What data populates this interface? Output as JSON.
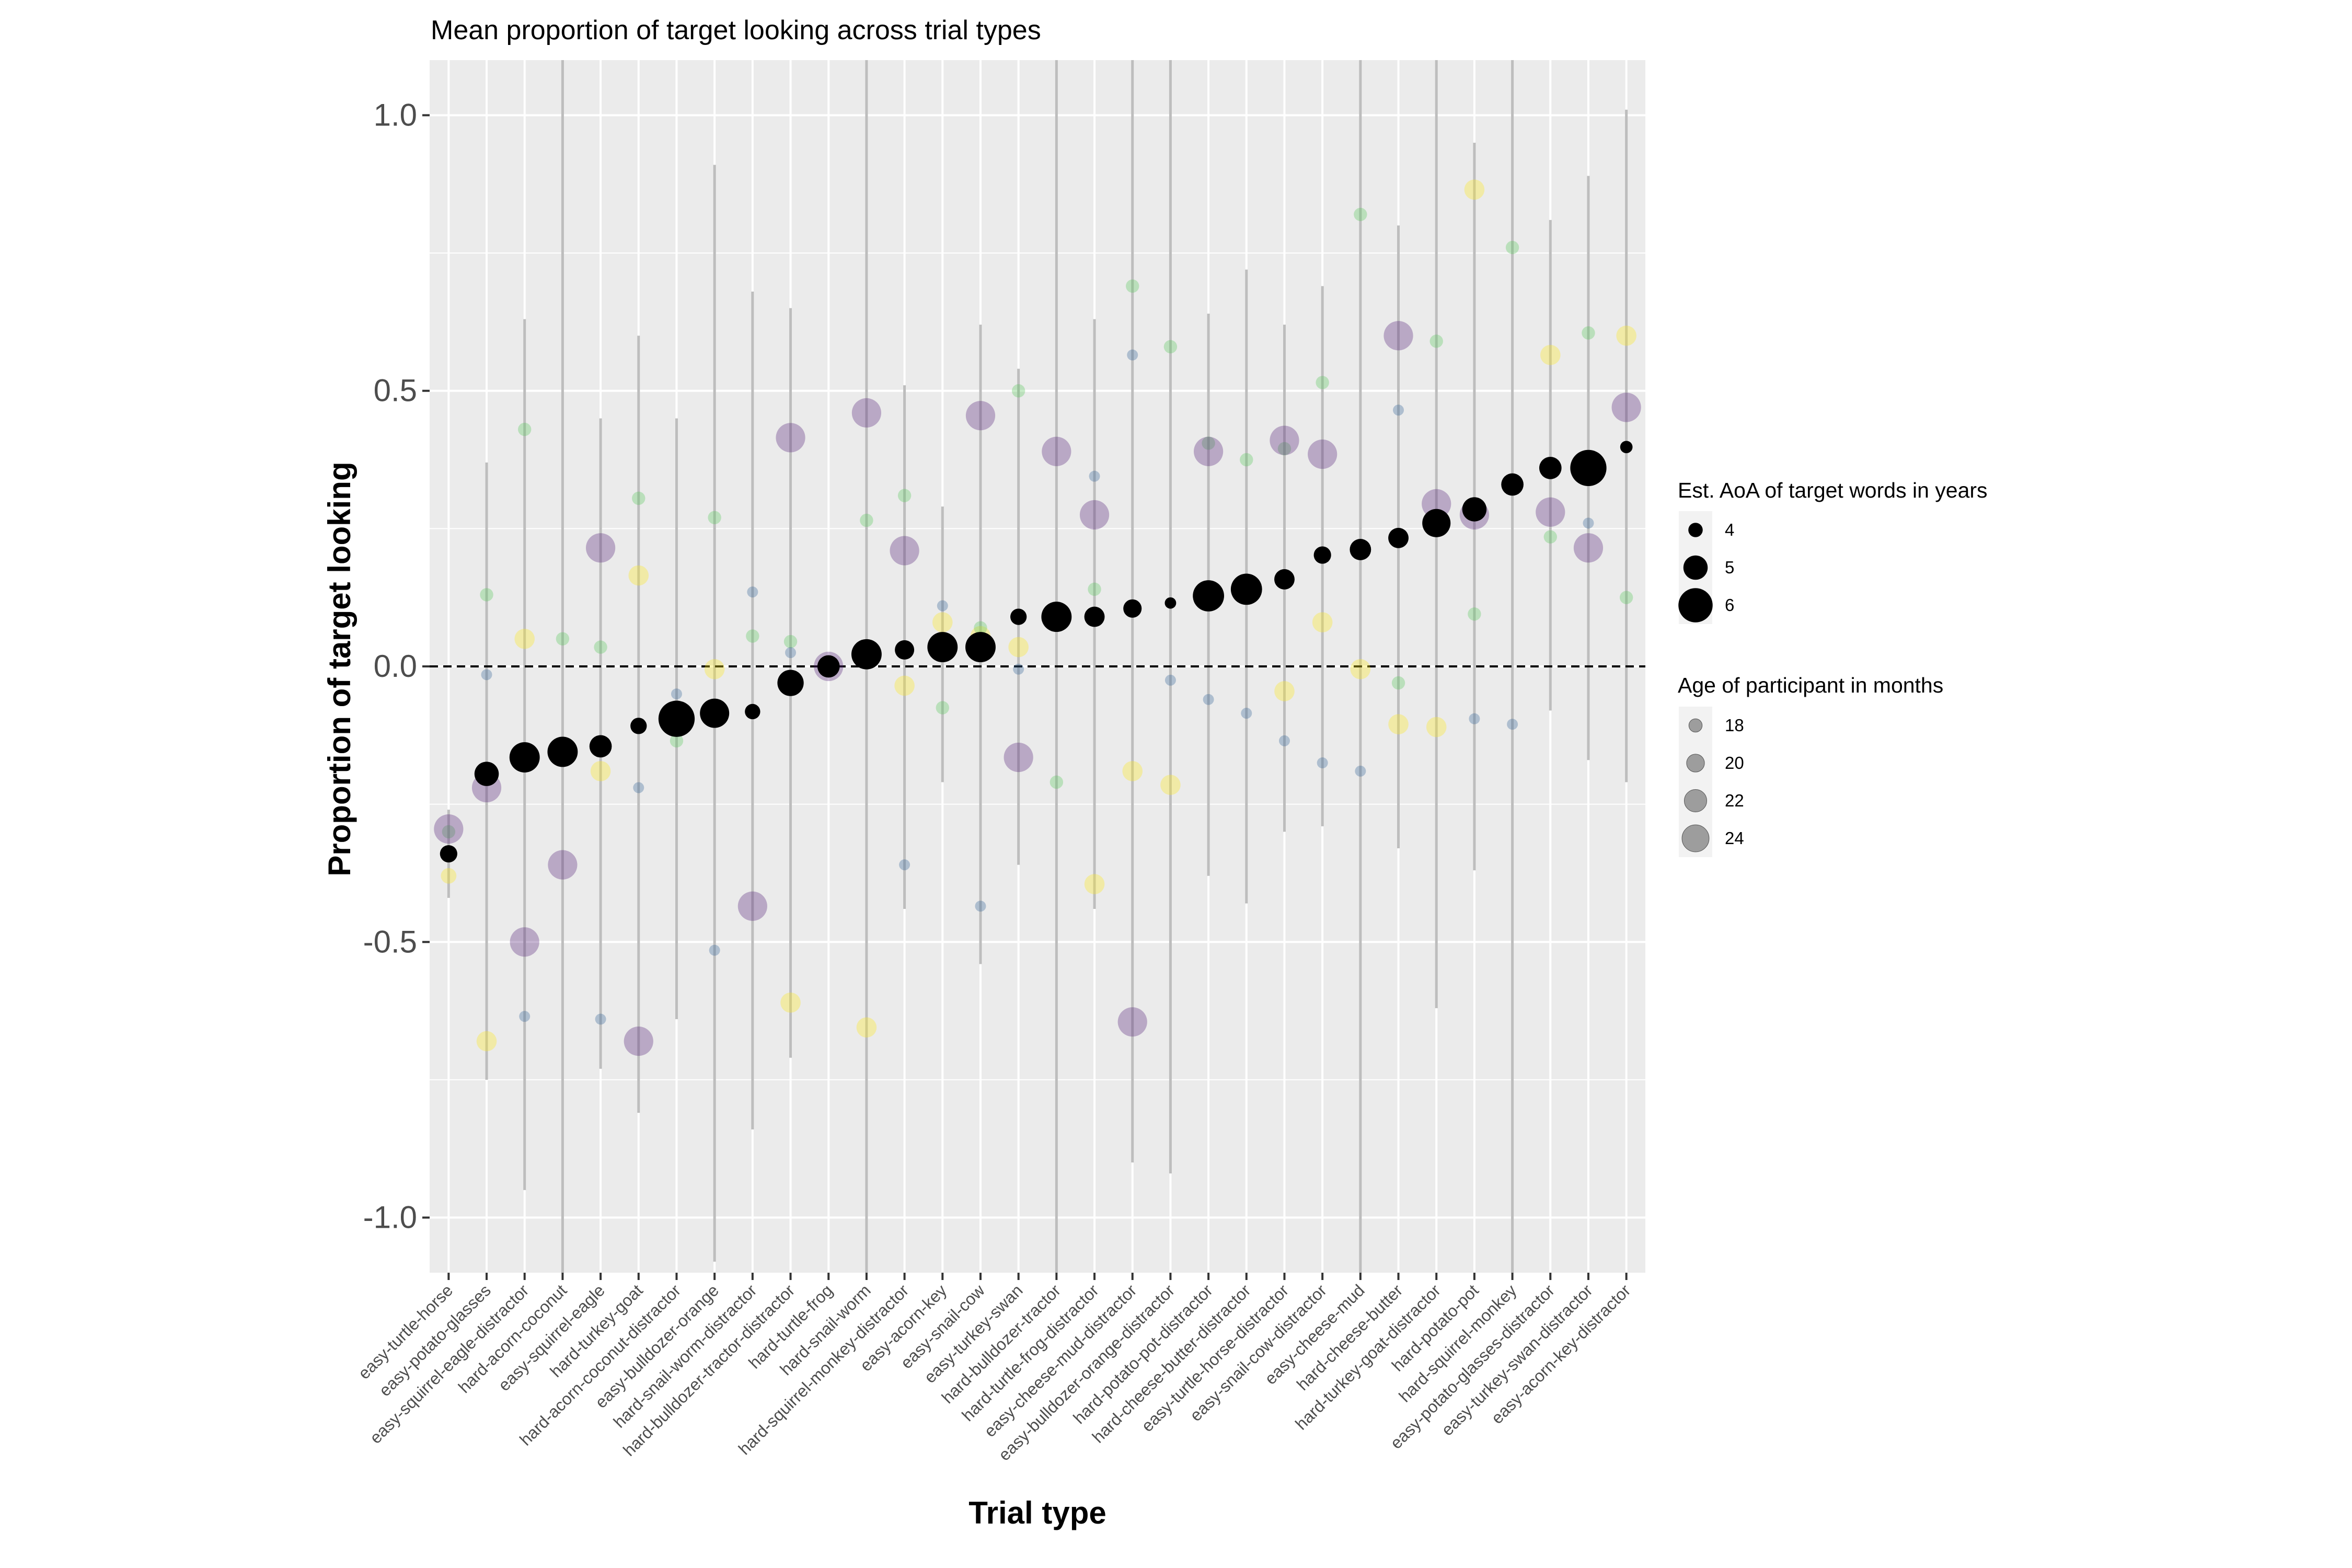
{
  "chart_data": {
    "type": "scatter",
    "title": "Mean proportion of target looking across trial types",
    "xlabel": "Trial type",
    "ylabel": "Proportion of target looking",
    "ylim": [
      -1.1,
      1.1
    ],
    "yticks": [
      -1.0,
      -0.5,
      0.0,
      0.5,
      1.0
    ],
    "ytick_labels": [
      "-1.0",
      "-0.5",
      "0.0",
      "0.5",
      "1.0"
    ],
    "reference_line": 0,
    "grid": true,
    "categories": [
      "easy-turtle-horse",
      "easy-potato-glasses",
      "easy-squirrel-eagle-distractor",
      "hard-acorn-coconut",
      "easy-squirrel-eagle",
      "hard-turkey-goat",
      "hard-acorn-coconut-distractor",
      "easy-bulldozer-orange",
      "hard-snail-worm-distractor",
      "hard-bulldozer-tractor-distractor",
      "hard-turtle-frog",
      "hard-snail-worm",
      "hard-squirrel-monkey-distractor",
      "easy-acorn-key",
      "easy-snail-cow",
      "easy-turkey-swan",
      "hard-bulldozer-tractor",
      "hard-turtle-frog-distractor",
      "easy-cheese-mud-distractor",
      "easy-bulldozer-orange-distractor",
      "hard-potato-pot-distractor",
      "hard-cheese-butter-distractor",
      "easy-turtle-horse-distractor",
      "easy-snail-cow-distractor",
      "easy-cheese-mud",
      "hard-cheese-butter",
      "hard-turkey-goat-distractor",
      "hard-potato-pot",
      "hard-squirrel-monkey",
      "easy-potato-glasses-distractor",
      "easy-turkey-swan-distractor",
      "easy-acorn-key-distractor"
    ],
    "error_bars": [
      [
        -0.42,
        -0.26
      ],
      [
        -0.75,
        0.37
      ],
      [
        -0.95,
        0.63
      ],
      [
        -1.1,
        1.1
      ],
      [
        -0.73,
        0.45
      ],
      [
        -0.81,
        0.6
      ],
      [
        -0.64,
        0.45
      ],
      [
        -1.08,
        0.91
      ],
      [
        -0.84,
        0.68
      ],
      [
        -0.71,
        0.65
      ],
      [
        0,
        0
      ],
      [
        -1.1,
        1.1
      ],
      [
        -0.44,
        0.51
      ],
      [
        -0.21,
        0.29
      ],
      [
        -0.54,
        0.62
      ],
      [
        -0.36,
        0.54
      ],
      [
        -1.1,
        1.1
      ],
      [
        -0.44,
        0.63
      ],
      [
        -0.9,
        1.1
      ],
      [
        -0.92,
        1.1
      ],
      [
        -0.38,
        0.64
      ],
      [
        -0.43,
        0.72
      ],
      [
        -0.3,
        0.62
      ],
      [
        -0.29,
        0.69
      ],
      [
        -1.1,
        1.1
      ],
      [
        -0.33,
        0.8
      ],
      [
        -0.62,
        1.1
      ],
      [
        -0.37,
        0.95
      ],
      [
        -1.1,
        1.1
      ],
      [
        -0.08,
        0.81
      ],
      [
        -0.17,
        0.89
      ],
      [
        -0.21,
        1.01
      ]
    ],
    "series": [
      {
        "name": "Mean (sized by Est. AoA)",
        "values": [
          -0.34,
          -0.195,
          -0.165,
          -0.155,
          -0.145,
          -0.108,
          -0.095,
          -0.085,
          -0.082,
          -0.03,
          0.0,
          0.022,
          0.03,
          0.035,
          0.035,
          0.09,
          0.09,
          0.09,
          0.105,
          0.115,
          0.128,
          0.14,
          0.158,
          0.202,
          0.212,
          0.233,
          0.26,
          0.285,
          0.33,
          0.36,
          0.36,
          0.398
        ],
        "aoa": [
          4.3,
          5.0,
          5.6,
          5.6,
          4.8,
          4.2,
          6.2,
          5.5,
          4.1,
          5.2,
          4.8,
          5.6,
          4.5,
          5.6,
          5.6,
          4.2,
          5.6,
          4.6,
          4.4,
          3.7,
          5.7,
          5.7,
          4.6,
          4.3,
          4.7,
          4.6,
          5.4,
          5.0,
          4.8,
          4.8,
          6.2,
          3.8
        ]
      },
      {
        "name": "participant-yellow",
        "values": [
          -0.38,
          -0.68,
          0.05,
          null,
          -0.19,
          0.165,
          null,
          -0.005,
          null,
          -0.61,
          0.0,
          -0.655,
          -0.035,
          0.08,
          0.055,
          0.035,
          null,
          -0.395,
          -0.19,
          -0.215,
          null,
          0.13,
          -0.045,
          0.08,
          -0.005,
          -0.105,
          -0.11,
          0.865,
          null,
          0.565,
          null,
          0.6
        ],
        "age": [
          19,
          21,
          21,
          0,
          21,
          21,
          0,
          21,
          0,
          21,
          21,
          21,
          21,
          21,
          21,
          21,
          0,
          21,
          21,
          21,
          0,
          21,
          21,
          21,
          21,
          21,
          21,
          21,
          0,
          21,
          0,
          21
        ]
      },
      {
        "name": "participant-green",
        "values": [
          -0.3,
          0.13,
          0.43,
          0.05,
          0.035,
          0.305,
          -0.135,
          0.27,
          0.055,
          0.045,
          0.0,
          0.265,
          0.31,
          -0.075,
          0.07,
          0.5,
          -0.21,
          0.14,
          0.69,
          0.58,
          0.405,
          0.375,
          0.395,
          0.515,
          0.82,
          -0.03,
          0.59,
          0.095,
          0.76,
          0.235,
          0.605,
          0.125
        ],
        "age": [
          18,
          18,
          18,
          18,
          18,
          18,
          18,
          18,
          18,
          18,
          18,
          18,
          18,
          18,
          18,
          18,
          18,
          18,
          18,
          18,
          18,
          18,
          18,
          18,
          18,
          18,
          18,
          18,
          18,
          18,
          18,
          18
        ]
      },
      {
        "name": "participant-blue",
        "values": [
          null,
          -0.015,
          -0.635,
          null,
          -0.64,
          -0.22,
          -0.05,
          -0.515,
          0.135,
          0.025,
          0.0,
          null,
          -0.36,
          0.11,
          -0.435,
          -0.005,
          null,
          0.345,
          0.565,
          -0.025,
          -0.06,
          -0.085,
          -0.135,
          -0.175,
          -0.19,
          0.465,
          null,
          -0.095,
          -0.105,
          null,
          0.26,
          null
        ],
        "age": [
          17,
          17,
          17,
          0,
          17,
          17,
          17,
          17,
          17,
          17,
          17,
          0,
          17,
          17,
          17,
          17,
          0,
          17,
          17,
          17,
          17,
          17,
          17,
          17,
          17,
          17,
          0,
          17,
          17,
          0,
          17,
          0
        ]
      },
      {
        "name": "participant-purple",
        "values": [
          -0.295,
          -0.22,
          -0.5,
          -0.36,
          0.215,
          -0.68,
          null,
          null,
          -0.435,
          0.415,
          0.0,
          0.46,
          0.21,
          null,
          0.455,
          -0.165,
          0.39,
          0.275,
          -0.645,
          null,
          0.39,
          null,
          0.41,
          0.385,
          null,
          0.6,
          0.295,
          0.275,
          null,
          0.28,
          0.215,
          0.47
        ],
        "age": [
          25,
          25,
          25,
          25,
          25,
          25,
          0,
          0,
          25,
          25,
          25,
          25,
          25,
          0,
          25,
          25,
          25,
          25,
          25,
          0,
          25,
          0,
          25,
          25,
          0,
          25,
          25,
          25,
          0,
          25,
          25,
          25
        ]
      }
    ],
    "colors": {
      "mean": "#000000",
      "participant-yellow": "#FDE725",
      "participant-green": "#5EC962",
      "participant-blue": "#3B6A9A",
      "participant-purple": "#5B2A7E",
      "error_bar": "#BDBDBD",
      "panel": "#EBEBEB",
      "grid": "#FFFFFF",
      "legend_key_bg": "#F2F2F2"
    },
    "legend": {
      "placement": "right",
      "aoa": {
        "title": "Est. AoA of target words in years",
        "values": [
          4,
          5,
          6
        ],
        "labels": [
          "4",
          "5",
          "6"
        ]
      },
      "age": {
        "title": "Age of participant in months",
        "values": [
          18,
          20,
          22,
          24
        ],
        "labels": [
          "18",
          "20",
          "22",
          "24"
        ]
      }
    }
  }
}
